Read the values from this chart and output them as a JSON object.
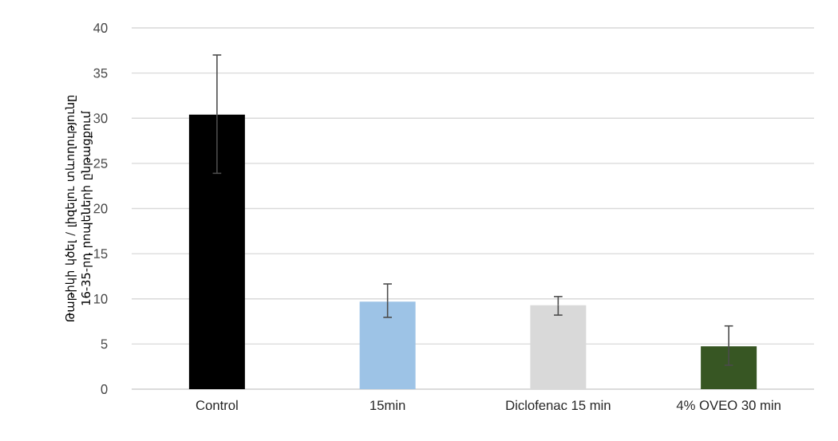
{
  "chart_data": {
    "type": "bar",
    "ylabel": "Թաթիկի կծել / լիզելու տևողությունը 16-35-րդ րոպեների ընթացքում",
    "categories": [
      "Control",
      "15min",
      "Diclofenac 15 min",
      "4% OVEO 30 min"
    ],
    "values": [
      30.4,
      9.7,
      9.3,
      4.75
    ],
    "colors": [
      "#000000",
      "#9dc3e6",
      "#d9d9d9",
      "#375623"
    ],
    "errors": [
      [
        23.9,
        37.0
      ],
      [
        7.95,
        11.65
      ],
      [
        8.2,
        10.25
      ],
      [
        2.65,
        7.0
      ]
    ],
    "ylim": [
      0,
      40
    ],
    "yticks": [
      0,
      5,
      10,
      15,
      20,
      25,
      30,
      35,
      40
    ],
    "grid": "y"
  }
}
